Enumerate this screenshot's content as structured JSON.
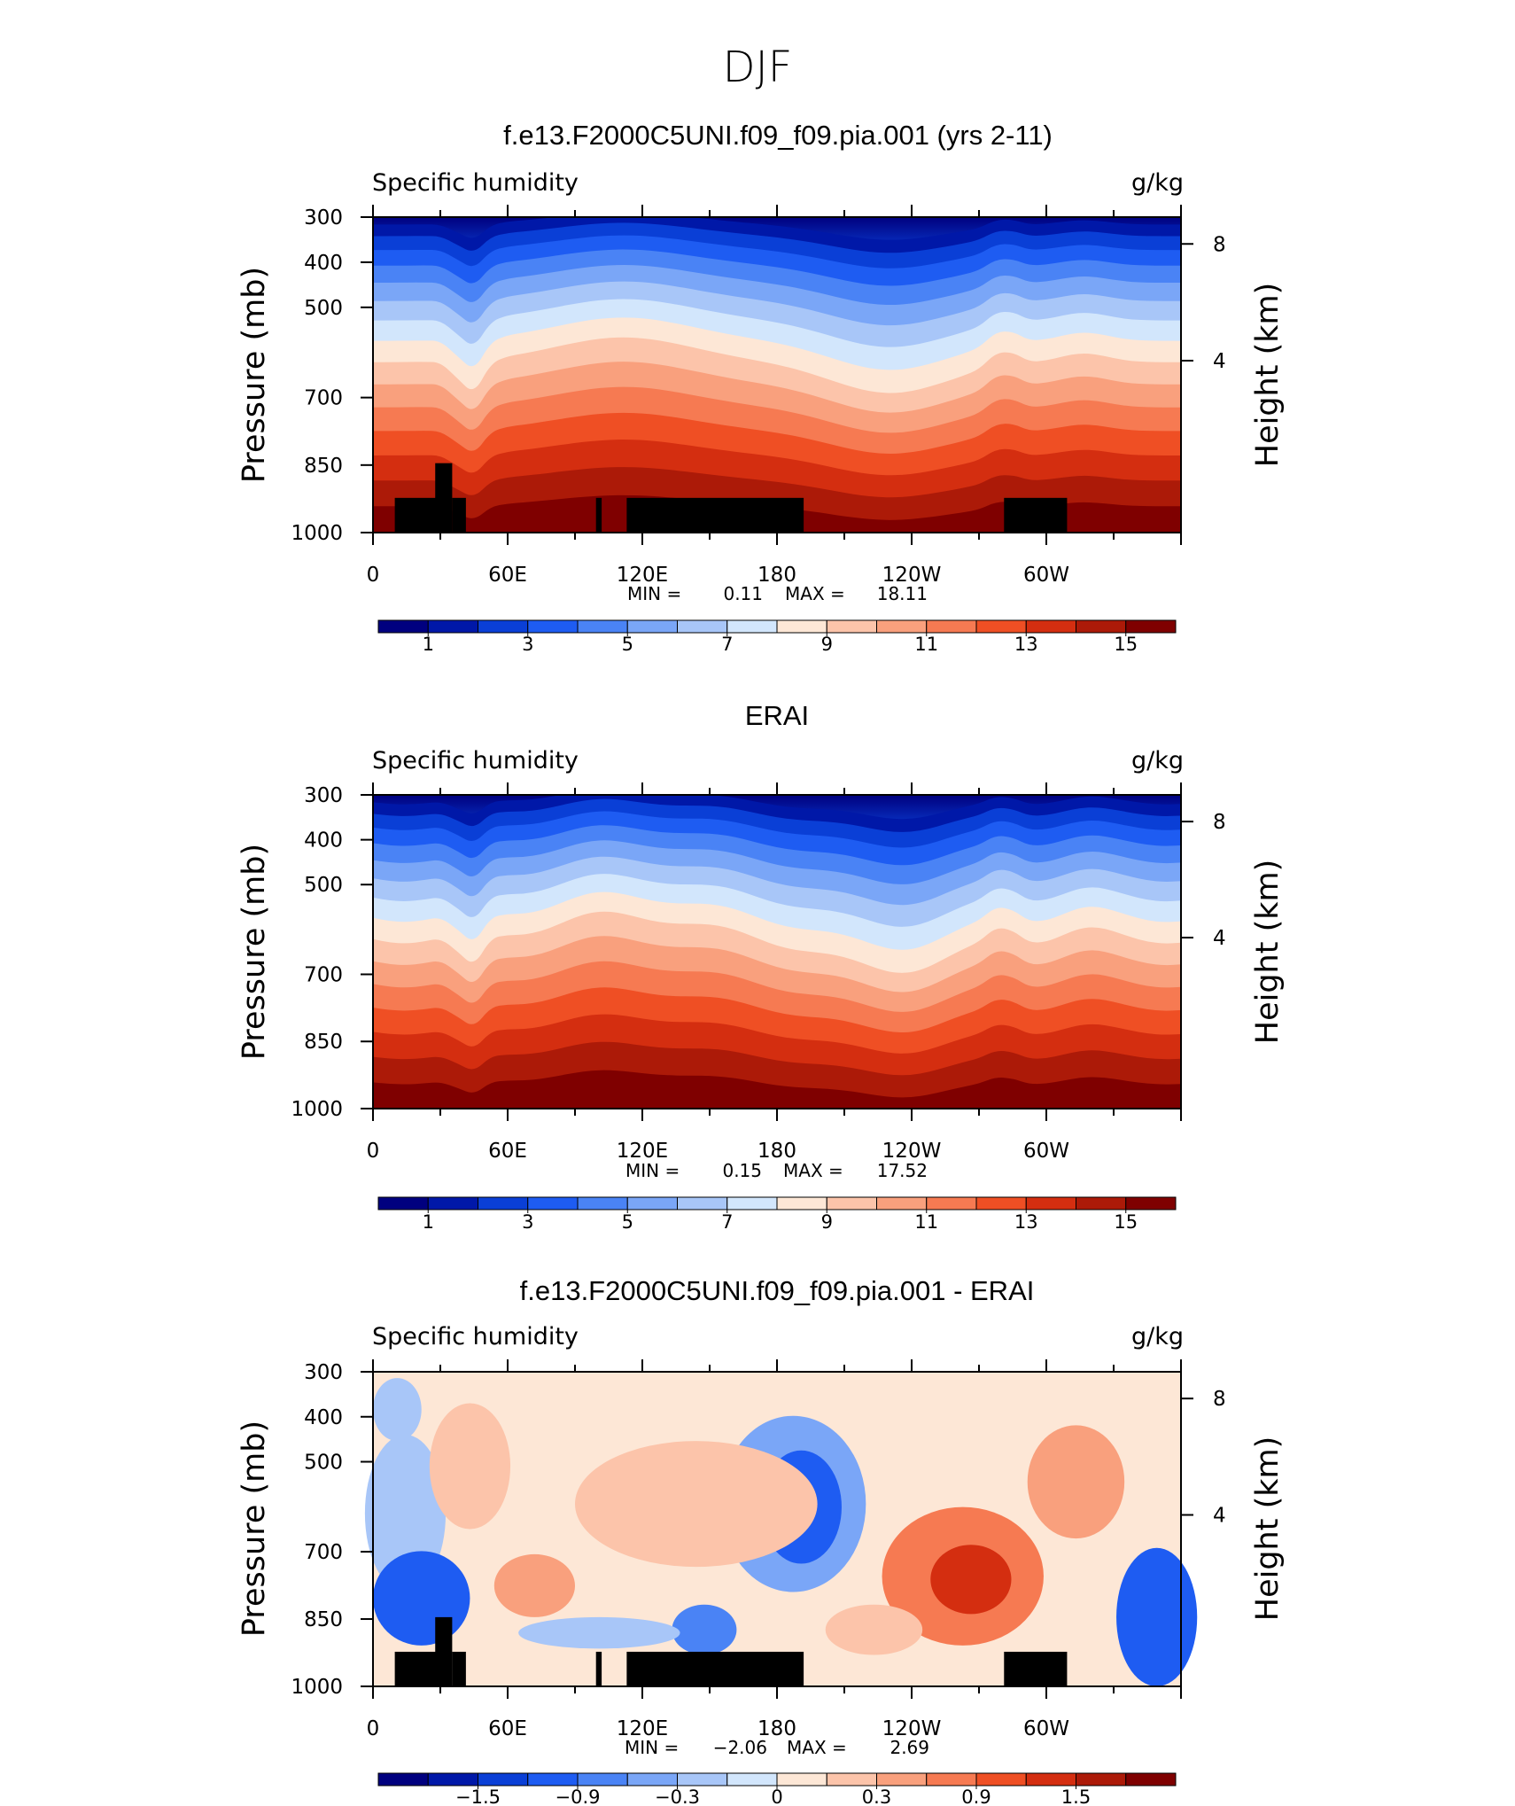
{
  "page_title": "DJF",
  "chart_data": [
    {
      "type": "heatmap",
      "title": "f.e13.F2000C5UNI.f09_f09.pia.001 (yrs 2-11)",
      "left_label": "Specific humidity",
      "right_label": "g/kg",
      "ylabel": "Pressure (mb)",
      "ylabel_right": "Height (km)",
      "x_ticks": [
        "0",
        "60E",
        "120E",
        "180",
        "120W",
        "60W"
      ],
      "y_ticks": [
        "300",
        "400",
        "500",
        "700",
        "850",
        "1000"
      ],
      "y_ticks_right": [
        "8",
        "4"
      ],
      "stats": {
        "min_label": "MIN =",
        "min": "0.11",
        "max_label": "MAX =",
        "max": "18.11"
      },
      "colorbar_labels": [
        "1",
        "3",
        "5",
        "7",
        "9",
        "11",
        "13",
        "15"
      ],
      "colorbar_colors": [
        "#00007f",
        "#0018a8",
        "#0a3fd6",
        "#1e5cf2",
        "#4a83f5",
        "#7aa6f7",
        "#a8c6f8",
        "#d2e6fc",
        "#fde7d6",
        "#fcc4aa",
        "#f9a07d",
        "#f67a52",
        "#ef4f24",
        "#d42e10",
        "#ac1a08",
        "#7f0000"
      ],
      "mode": "field",
      "masked": true
    },
    {
      "type": "heatmap",
      "title": "ERAI",
      "left_label": "Specific humidity",
      "right_label": "g/kg",
      "ylabel": "Pressure (mb)",
      "ylabel_right": "Height (km)",
      "x_ticks": [
        "0",
        "60E",
        "120E",
        "180",
        "120W",
        "60W"
      ],
      "y_ticks": [
        "300",
        "400",
        "500",
        "700",
        "850",
        "1000"
      ],
      "y_ticks_right": [
        "8",
        "4"
      ],
      "stats": {
        "min_label": "MIN =",
        "min": "0.15",
        "max_label": "MAX =",
        "max": "17.52"
      },
      "colorbar_labels": [
        "1",
        "3",
        "5",
        "7",
        "9",
        "11",
        "13",
        "15"
      ],
      "colorbar_colors": [
        "#00007f",
        "#0018a8",
        "#0a3fd6",
        "#1e5cf2",
        "#4a83f5",
        "#7aa6f7",
        "#a8c6f8",
        "#d2e6fc",
        "#fde7d6",
        "#fcc4aa",
        "#f9a07d",
        "#f67a52",
        "#ef4f24",
        "#d42e10",
        "#ac1a08",
        "#7f0000"
      ],
      "mode": "field",
      "masked": false
    },
    {
      "type": "heatmap",
      "title": "f.e13.F2000C5UNI.f09_f09.pia.001 - ERAI",
      "left_label": "Specific humidity",
      "right_label": "g/kg",
      "ylabel": "Pressure (mb)",
      "ylabel_right": "Height (km)",
      "x_ticks": [
        "0",
        "60E",
        "120E",
        "180",
        "120W",
        "60W"
      ],
      "y_ticks": [
        "300",
        "400",
        "500",
        "700",
        "850",
        "1000"
      ],
      "y_ticks_right": [
        "8",
        "4"
      ],
      "stats": {
        "min_label": "MIN =",
        "min": "−2.06",
        "max_label": "MAX =",
        "max": "2.69"
      },
      "colorbar_labels": [
        "−1.5",
        "−0.9",
        "−0.3",
        "0",
        "0.3",
        "0.9",
        "1.5"
      ],
      "colorbar_colors": [
        "#00007f",
        "#0018a8",
        "#0a3fd6",
        "#1e5cf2",
        "#4a83f5",
        "#7aa6f7",
        "#a8c6f8",
        "#d2e6fc",
        "#fde7d6",
        "#fcc4aa",
        "#f9a07d",
        "#f67a52",
        "#ef4f24",
        "#d42e10",
        "#ac1a08",
        "#7f0000"
      ],
      "mode": "diff",
      "masked": true
    }
  ]
}
